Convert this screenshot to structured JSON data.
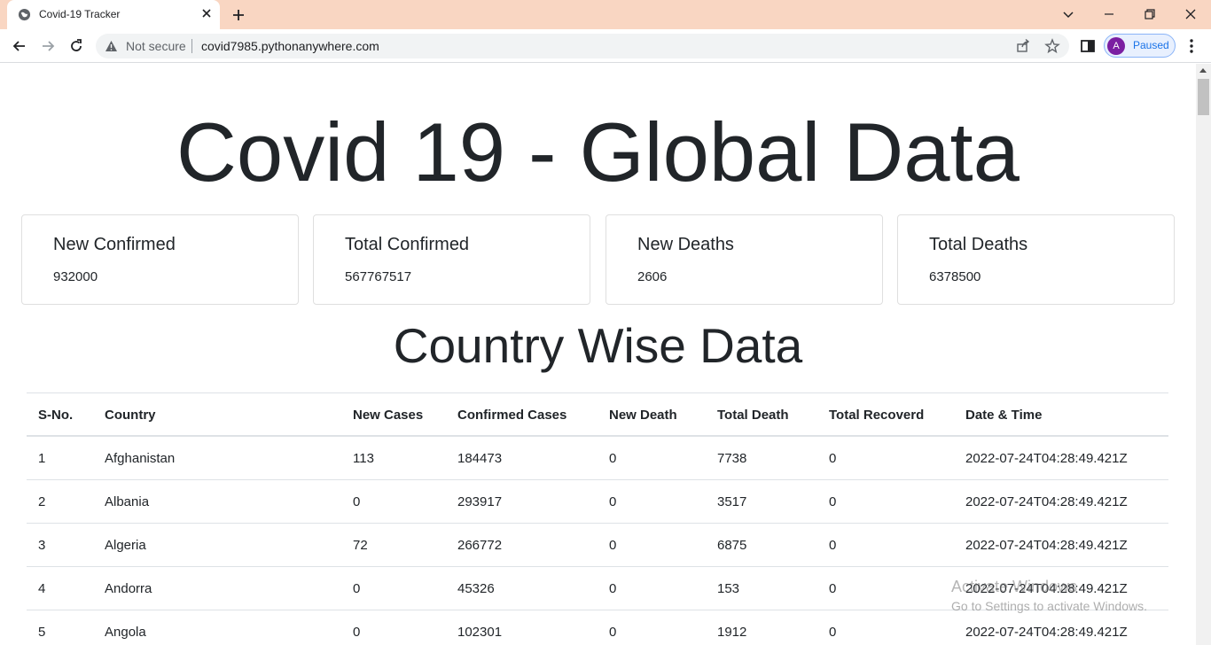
{
  "browser": {
    "tab_title": "Covid-19 Tracker",
    "security_label": "Not secure",
    "url": "covid7985.pythonanywhere.com",
    "profile_initial": "A",
    "profile_label": "Paused"
  },
  "page": {
    "title": "Covid 19 - Global Data",
    "cards": [
      {
        "label": "New Confirmed",
        "value": "932000"
      },
      {
        "label": "Total Confirmed",
        "value": "567767517"
      },
      {
        "label": "New Deaths",
        "value": "2606"
      },
      {
        "label": "Total Deaths",
        "value": "6378500"
      }
    ],
    "section_title": "Country Wise Data",
    "table": {
      "headers": [
        "S-No.",
        "Country",
        "New Cases",
        "Confirmed Cases",
        "New Death",
        "Total Death",
        "Total Recoverd",
        "Date & Time"
      ],
      "rows": [
        [
          "1",
          "Afghanistan",
          "113",
          "184473",
          "0",
          "7738",
          "0",
          "2022-07-24T04:28:49.421Z"
        ],
        [
          "2",
          "Albania",
          "0",
          "293917",
          "0",
          "3517",
          "0",
          "2022-07-24T04:28:49.421Z"
        ],
        [
          "3",
          "Algeria",
          "72",
          "266772",
          "0",
          "6875",
          "0",
          "2022-07-24T04:28:49.421Z"
        ],
        [
          "4",
          "Andorra",
          "0",
          "45326",
          "0",
          "153",
          "0",
          "2022-07-24T04:28:49.421Z"
        ],
        [
          "5",
          "Angola",
          "0",
          "102301",
          "0",
          "1912",
          "0",
          "2022-07-24T04:28:49.421Z"
        ]
      ]
    }
  },
  "watermark": {
    "line1": "Activate Windows",
    "line2": "Go to Settings to activate Windows."
  }
}
